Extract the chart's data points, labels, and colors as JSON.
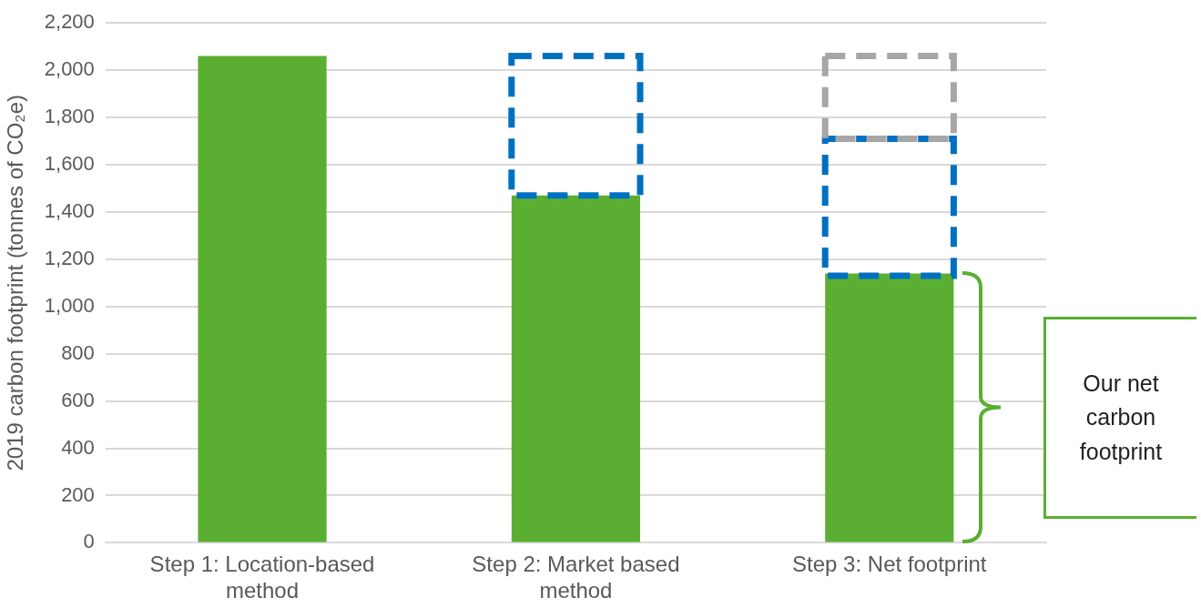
{
  "chart_data": {
    "type": "bar",
    "ylabel": "2019 carbon footprint (tonnes of CO₂e)",
    "categories": [
      "Step 1: Location-based method",
      "Step 2: Market based method",
      "Step 3: Net footprint"
    ],
    "series": [
      {
        "color": "#5aaf32",
        "values": [
          2060,
          1470,
          1140
        ]
      },
      {
        "color": "#0070c0",
        "values": [
          null,
          590,
          580
        ],
        "base": [
          null,
          1470,
          1130
        ],
        "line_style": "dashed"
      },
      {
        "color": "#a6a6a6",
        "values": [
          null,
          null,
          350
        ],
        "base": [
          null,
          null,
          1710
        ],
        "line_style": "dashed"
      }
    ],
    "ylim": [
      0,
      2200
    ],
    "yticks": [
      0,
      200,
      400,
      600,
      800,
      {
        "value": 1000,
        "label": "1,000"
      },
      {
        "value": 1200,
        "label": "1,200"
      },
      {
        "value": 1400,
        "label": "1,400"
      },
      {
        "value": 1600,
        "label": "1,600"
      },
      {
        "value": 1800,
        "label": "1,800"
      },
      {
        "value": 2000,
        "label": "2,000"
      },
      {
        "value": 2200,
        "label": "2,200"
      }
    ],
    "grid": "y",
    "legend": false,
    "annotations": [
      "Our net carbon footprint"
    ]
  }
}
